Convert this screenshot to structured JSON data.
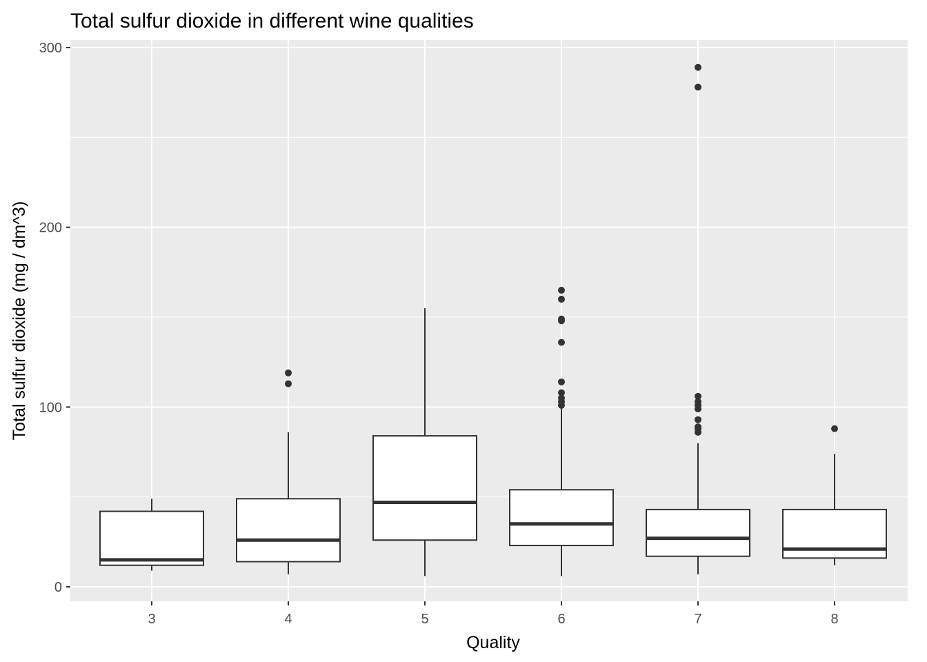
{
  "chart_data": {
    "type": "boxplot",
    "title": "Total sulfur dioxide in different wine qualities",
    "xlabel": "Quality",
    "ylabel": "Total sulfur dioxide (mg / dm^3)",
    "ylim": [
      -8,
      303
    ],
    "yticks": [
      0,
      100,
      200,
      300
    ],
    "grid": true,
    "colors": {
      "panel_background": "#ebebeb",
      "grid": "#ffffff",
      "box_fill": "#ffffff",
      "box_stroke": "#333333",
      "outlier": "#333333",
      "tick_text": "#4d4d4d"
    },
    "categories": [
      "3",
      "4",
      "5",
      "6",
      "7",
      "8"
    ],
    "boxes": [
      {
        "category": "3",
        "whisker_low": 9,
        "q1": 12,
        "median": 15,
        "q3": 42,
        "whisker_high": 49,
        "outliers": []
      },
      {
        "category": "4",
        "whisker_low": 7,
        "q1": 14,
        "median": 26,
        "q3": 49,
        "whisker_high": 86,
        "outliers": [
          113,
          119
        ]
      },
      {
        "category": "5",
        "whisker_low": 6,
        "q1": 26,
        "median": 47,
        "q3": 84,
        "whisker_high": 155,
        "outliers": []
      },
      {
        "category": "6",
        "whisker_low": 6,
        "q1": 23,
        "median": 35,
        "q3": 54,
        "whisker_high": 100,
        "outliers": [
          101,
          103,
          105,
          108,
          114,
          136,
          148,
          149,
          160,
          165
        ]
      },
      {
        "category": "7",
        "whisker_low": 7,
        "q1": 17,
        "median": 27,
        "q3": 43,
        "whisker_high": 80,
        "outliers": [
          86,
          88,
          89,
          93,
          99,
          101,
          103,
          106,
          278,
          289
        ]
      },
      {
        "category": "8",
        "whisker_low": 12,
        "q1": 16,
        "median": 21,
        "q3": 43,
        "whisker_high": 74,
        "outliers": [
          88
        ]
      }
    ]
  }
}
